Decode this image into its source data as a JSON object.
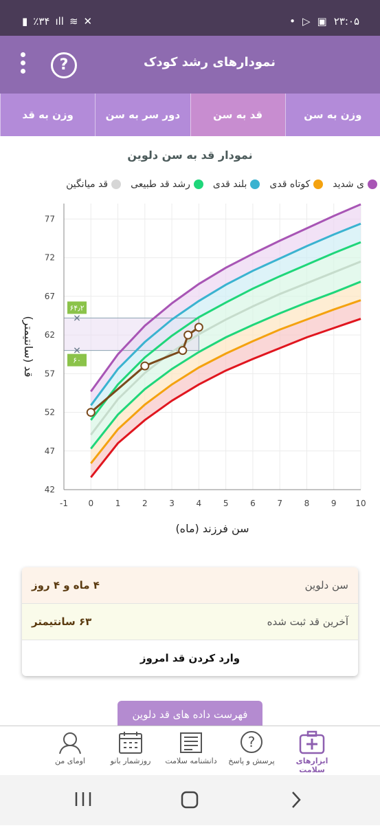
{
  "status": {
    "time": "۲۳:۰۵",
    "battery": "٪۳۴"
  },
  "appbar": {
    "title": "نمودارهای رشد کودک"
  },
  "tabs": [
    {
      "label": "وزن به سن",
      "active": false
    },
    {
      "label": "قد به سن",
      "active": true
    },
    {
      "label": "دور سر به سن",
      "active": false
    },
    {
      "label": "وزن به قد",
      "active": false
    }
  ],
  "chart_title": "نمودار قد به سن دلوین",
  "legend": [
    {
      "label": "ی شدید",
      "color": "#a855b5"
    },
    {
      "label": "کوتاه قدی",
      "color": "#f4a20f"
    },
    {
      "label": "بلند قدی",
      "color": "#3ab3d0"
    },
    {
      "label": "رشد قد طبیعی",
      "color": "#1fd67a"
    },
    {
      "label": "قد میانگین",
      "color": "#d6d6d6"
    }
  ],
  "chart_data": {
    "type": "line",
    "xlabel": "سن فرزند (ماه)",
    "ylabel": "قد (سانتیمتر)",
    "xlim": [
      -1,
      10
    ],
    "ylim": [
      42,
      79
    ],
    "xticks": [
      -1,
      0,
      1,
      2,
      3,
      4,
      5,
      6,
      7,
      8,
      9,
      10
    ],
    "yticks": [
      42,
      47,
      52,
      57,
      62,
      67,
      72,
      77
    ],
    "x": [
      0,
      1,
      2,
      3,
      4,
      5,
      6,
      7,
      8,
      9,
      10
    ],
    "series": [
      {
        "name": "severe_short",
        "color": "#e0161f",
        "values": [
          43.6,
          48.0,
          51.0,
          53.5,
          55.6,
          57.4,
          58.9,
          60.3,
          61.7,
          62.9,
          64.1
        ]
      },
      {
        "name": "short",
        "color": "#f4a20f",
        "values": [
          45.4,
          49.8,
          53.0,
          55.6,
          57.8,
          59.6,
          61.2,
          62.7,
          64.0,
          65.3,
          66.5
        ]
      },
      {
        "name": "normal_low",
        "color": "#1fd67a",
        "values": [
          47.3,
          51.7,
          55.0,
          57.6,
          59.8,
          61.7,
          63.3,
          64.8,
          66.2,
          67.5,
          68.9
        ]
      },
      {
        "name": "median",
        "color": "#c6dccc",
        "values": [
          49.1,
          53.7,
          57.1,
          59.8,
          62.1,
          64.0,
          65.7,
          67.3,
          68.7,
          70.1,
          71.5
        ]
      },
      {
        "name": "normal_high",
        "color": "#1fd67a",
        "values": [
          51.0,
          55.6,
          59.1,
          61.9,
          64.3,
          66.2,
          68.0,
          69.6,
          71.1,
          72.6,
          74.0
        ]
      },
      {
        "name": "tall",
        "color": "#3ab3d0",
        "values": [
          52.9,
          57.6,
          61.1,
          64.0,
          66.4,
          68.5,
          70.3,
          71.9,
          73.5,
          75.0,
          76.4
        ]
      },
      {
        "name": "very_tall",
        "color": "#a855b5",
        "values": [
          54.7,
          59.5,
          63.2,
          66.1,
          68.6,
          70.7,
          72.5,
          74.2,
          75.8,
          77.4,
          78.9
        ]
      }
    ],
    "child": {
      "x": [
        0,
        2,
        3.4,
        3.6,
        4.0
      ],
      "y": [
        52,
        58,
        60,
        62,
        63
      ]
    },
    "markers": [
      {
        "label": "۶۴٫۲",
        "value": 64.2
      },
      {
        "label": "۶۰",
        "value": 60
      }
    ],
    "highlight": {
      "x": [
        -1,
        4
      ],
      "y": [
        60,
        64.2
      ]
    }
  },
  "info": {
    "age_label": "سن دلوین",
    "age_value": "۴ ماه و ۴ روز",
    "height_label": "آخرین قد ثبت شده",
    "height_value": "۶۳ سانتیمتر",
    "enter_button": "وارد کردن قد امروز"
  },
  "list_button": "فهرست داده های قد دلوین",
  "bottom_nav": [
    {
      "label": "ابزارهای سلامت",
      "icon": "health-kit-icon",
      "active": true
    },
    {
      "label": "پرسش و پاسخ",
      "icon": "question-bubble-icon",
      "active": false
    },
    {
      "label": "دانشنامه سلامت",
      "icon": "newspaper-icon",
      "active": false
    },
    {
      "label": "روزشمار بانو",
      "icon": "calendar-icon",
      "active": false
    },
    {
      "label": "اومای من",
      "icon": "profile-icon",
      "active": false
    }
  ]
}
